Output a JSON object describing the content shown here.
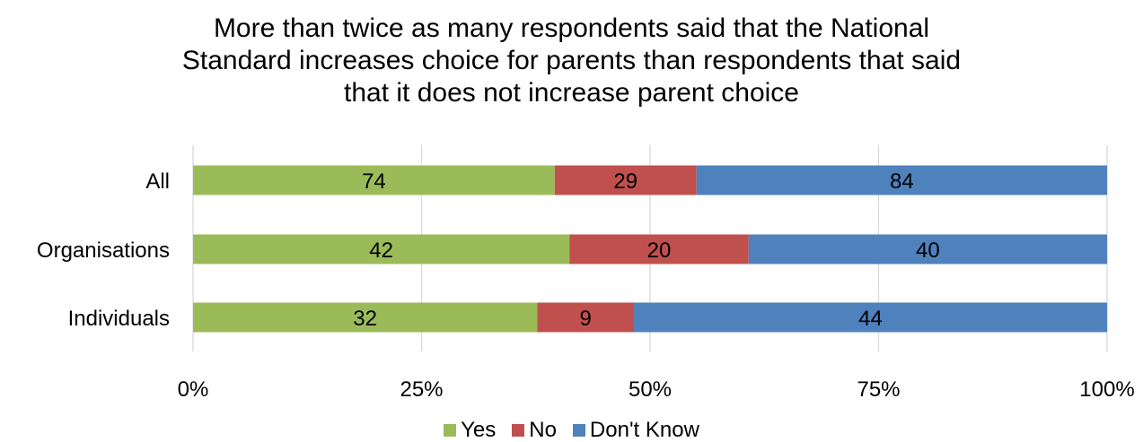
{
  "chart_data": {
    "type": "bar",
    "orientation": "horizontal",
    "stacked": "percent",
    "title": "More than twice as many respondents said that the National\nStandard increases choice for parents than respondents that said\nthat it does not increase parent choice",
    "categories": [
      "All",
      "Organisations",
      "Individuals"
    ],
    "series": [
      {
        "name": "Yes",
        "color": "#9bbb59",
        "values": [
          74,
          42,
          32
        ]
      },
      {
        "name": "No",
        "color": "#c0504d",
        "values": [
          29,
          20,
          9
        ]
      },
      {
        "name": "Don't Know",
        "color": "#4f81bd",
        "values": [
          84,
          40,
          44
        ]
      }
    ],
    "x_ticks": [
      "0%",
      "25%",
      "50%",
      "75%",
      "100%"
    ],
    "xlim": [
      0,
      100
    ],
    "grid": true,
    "legend_position": "bottom"
  }
}
